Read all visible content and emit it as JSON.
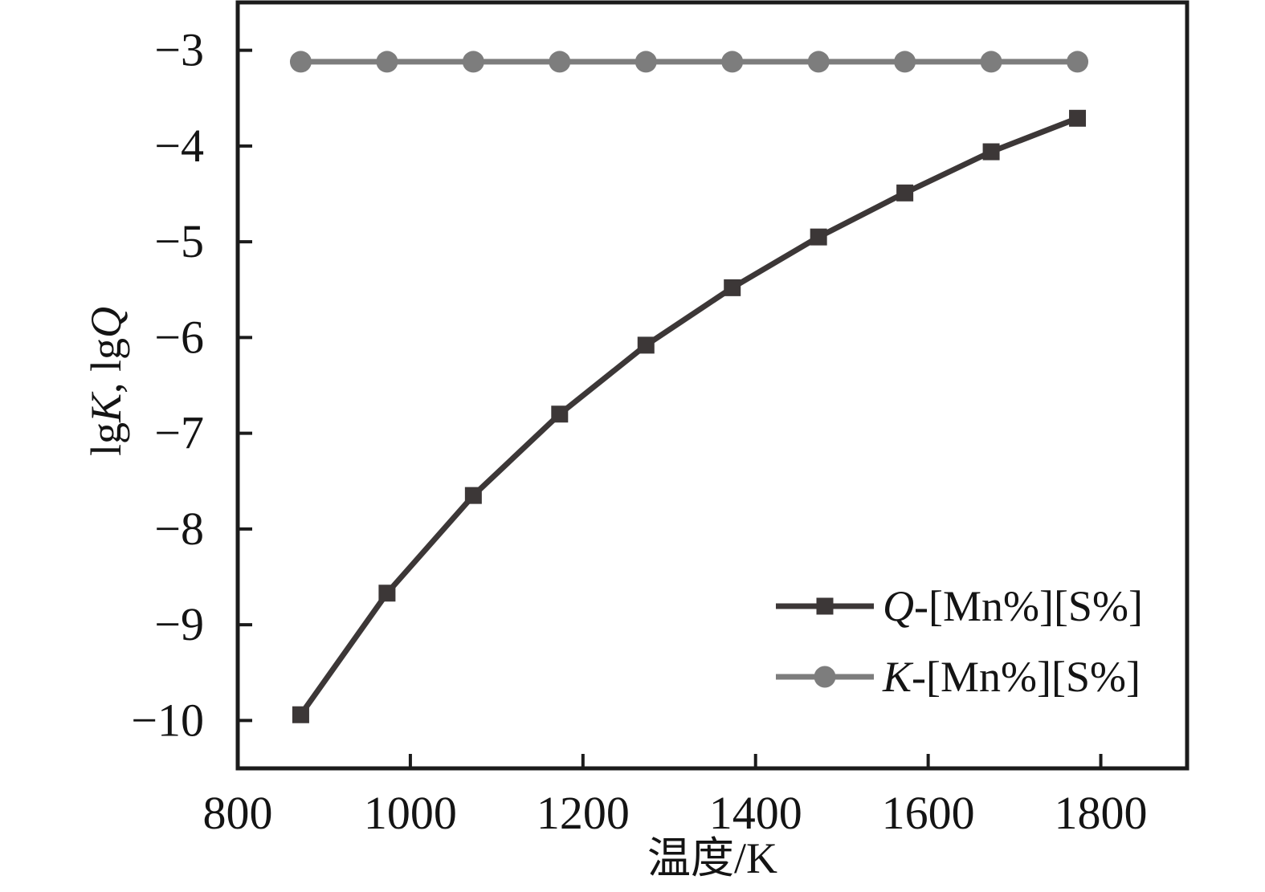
{
  "figure": {
    "background": "#ffffff",
    "frame_color": "#1b1b1b",
    "text_color": "#141414"
  },
  "chart_data": {
    "type": "line",
    "title": "",
    "xlabel": "温度/K",
    "ylabel": "lgK, lgQ",
    "ylabel_segments": [
      {
        "text": "lg",
        "italic": false
      },
      {
        "text": "K",
        "italic": true
      },
      {
        "text": ", lg",
        "italic": false
      },
      {
        "text": "Q",
        "italic": true
      }
    ],
    "xlim": [
      800,
      1900
    ],
    "ylim": [
      -10.5,
      -2.5
    ],
    "grid": false,
    "legend_position": "lower right",
    "x_tick_values": [
      800,
      1000,
      1200,
      1400,
      1600,
      1800
    ],
    "x_tick_labels": [
      "800",
      "1000",
      "1200",
      "1400",
      "1600",
      "1800"
    ],
    "y_tick_values": [
      -3,
      -4,
      -5,
      -6,
      -7,
      -8,
      -9,
      -10
    ],
    "y_tick_labels": [
      "−3",
      "−4",
      "−5",
      "−6",
      "−7",
      "−8",
      "−9",
      "−10"
    ],
    "series": [
      {
        "label": "Q-[Mn%][S%]",
        "label_italic_part": "Q",
        "label_rest": "-[Mn%][S%]",
        "marker": "square",
        "color": "#3c3737",
        "x": [
          873,
          973,
          1073,
          1173,
          1273,
          1373,
          1473,
          1573,
          1673,
          1773
        ],
        "y": [
          -9.94,
          -8.67,
          -7.65,
          -6.8,
          -6.08,
          -5.48,
          -4.95,
          -4.49,
          -4.06,
          -3.71
        ]
      },
      {
        "label": "K-[Mn%][S%]",
        "label_italic_part": "K",
        "label_rest": "-[Mn%][S%]",
        "marker": "circle",
        "color": "#7d7d7d",
        "x": [
          873,
          973,
          1073,
          1173,
          1273,
          1373,
          1473,
          1573,
          1673,
          1773
        ],
        "y": [
          -3.12,
          -3.12,
          -3.12,
          -3.12,
          -3.12,
          -3.12,
          -3.12,
          -3.12,
          -3.12,
          -3.12
        ]
      }
    ]
  }
}
